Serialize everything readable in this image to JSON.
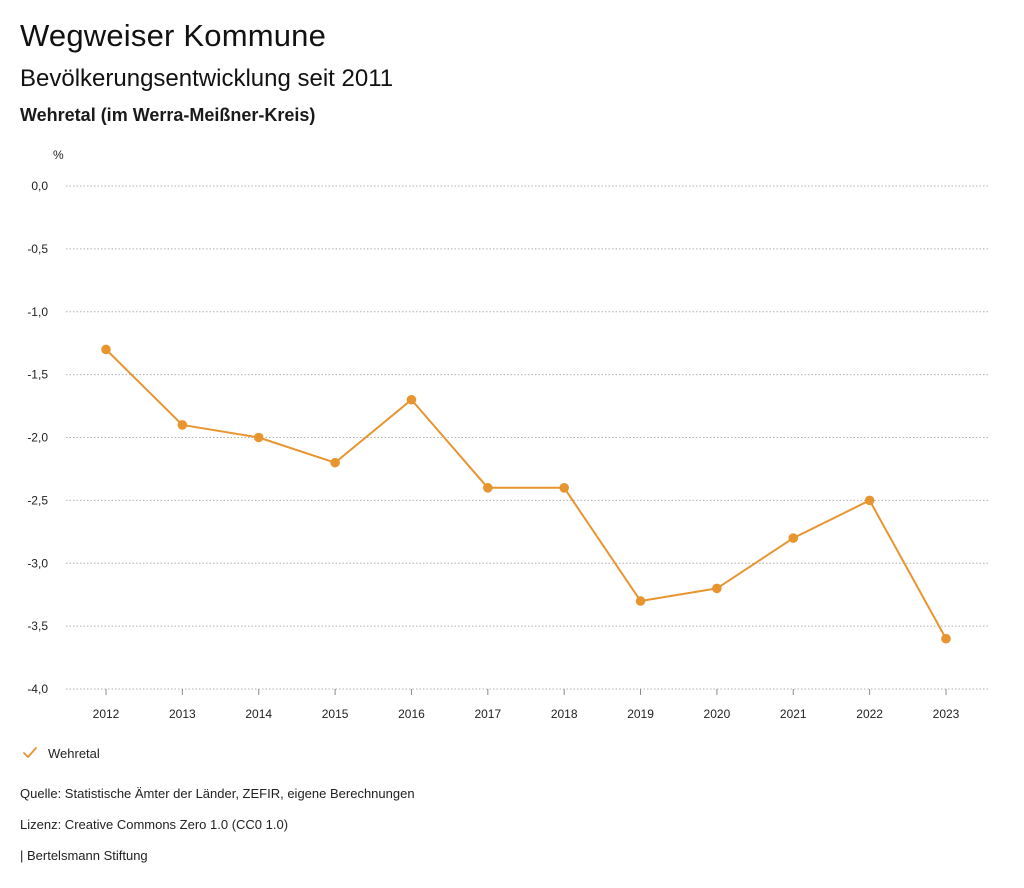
{
  "header": {
    "title": "Wegweiser Kommune",
    "subtitle": "Bevölkerungsentwicklung seit 2011",
    "region": "Wehretal (im Werra-Meißner-Kreis)"
  },
  "legend": {
    "label": "Wehretal"
  },
  "footer": {
    "source": "Quelle: Statistische Ämter der Länder, ZEFIR, eigene Berechnungen",
    "license": "Lizenz: Creative Commons Zero 1.0 (CC0 1.0)",
    "publisher": "| Bertelsmann Stiftung"
  },
  "colors": {
    "series": "#e8952f",
    "grid": "#b0b0b0"
  },
  "chart_data": {
    "type": "line",
    "title": "Bevölkerungsentwicklung seit 2011",
    "ylabel": "%",
    "xlabel": "",
    "ylim": [
      -4.0,
      0.0
    ],
    "yticks": [
      "0,0",
      "-0,5",
      "-1,0",
      "-1,5",
      "-2,0",
      "-2,5",
      "-3,0",
      "-3,5",
      "-4,0"
    ],
    "ytick_values": [
      0.0,
      -0.5,
      -1.0,
      -1.5,
      -2.0,
      -2.5,
      -3.0,
      -3.5,
      -4.0
    ],
    "categories": [
      "2012",
      "2013",
      "2014",
      "2015",
      "2016",
      "2017",
      "2018",
      "2019",
      "2020",
      "2021",
      "2022",
      "2023"
    ],
    "series": [
      {
        "name": "Wehretal",
        "values": [
          -1.3,
          -1.9,
          -2.0,
          -2.2,
          -1.7,
          -2.4,
          -2.4,
          -3.3,
          -3.2,
          -2.8,
          -2.5,
          -3.6
        ]
      }
    ],
    "grid": true,
    "legend_position": "bottom-left"
  }
}
